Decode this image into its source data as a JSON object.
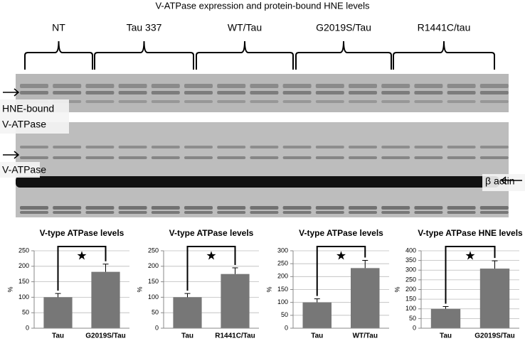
{
  "figure": {
    "title": "V-ATPase expression and protein-bound HNE levels",
    "groups": [
      "NT",
      "Tau 337",
      "WT/Tau",
      "G2019S/Tau",
      "R1441C/tau"
    ],
    "hne_label": [
      "HNE-bound",
      "V-ATPase"
    ],
    "vatpase_label": "V-ATPase",
    "actin_label": "β actin"
  },
  "chart_data": [
    {
      "type": "bar",
      "title": "V-type ATPase levels",
      "y_label": "%",
      "categories": [
        "Tau",
        "G2019S/Tau"
      ],
      "values": [
        100,
        182
      ],
      "errors": [
        12,
        25
      ],
      "color": "#777777",
      "ylim": [
        0,
        250
      ],
      "yticks": [
        0,
        50,
        100,
        150,
        200,
        250
      ],
      "grid": true,
      "annotation": "★"
    },
    {
      "type": "bar",
      "title": "V-type ATPase levels",
      "y_label": "%",
      "categories": [
        "Tau",
        "R1441C/Tau"
      ],
      "values": [
        100,
        175
      ],
      "errors": [
        12,
        20
      ],
      "color": "#777777",
      "ylim": [
        0,
        250
      ],
      "yticks": [
        0,
        50,
        100,
        150,
        200,
        250
      ],
      "grid": true,
      "annotation": "★"
    },
    {
      "type": "bar",
      "title": "V-type ATPase levels",
      "y_label": "%",
      "categories": [
        "Tau",
        "WT/Tau"
      ],
      "values": [
        100,
        233
      ],
      "errors": [
        14,
        30
      ],
      "color": "#777777",
      "ylim": [
        0,
        300
      ],
      "yticks": [
        0,
        50,
        100,
        150,
        200,
        250,
        300
      ],
      "grid": true,
      "annotation": "★"
    },
    {
      "type": "bar",
      "title": "V-type ATPase HNE levels",
      "y_label": "%",
      "categories": [
        "Tau",
        "G2019S/Tau"
      ],
      "values": [
        100,
        308
      ],
      "errors": [
        12,
        40
      ],
      "color": "#777777",
      "ylim": [
        0,
        400
      ],
      "yticks": [
        0,
        50,
        100,
        150,
        200,
        250,
        300,
        350,
        400
      ],
      "grid": true,
      "annotation": "★"
    }
  ]
}
